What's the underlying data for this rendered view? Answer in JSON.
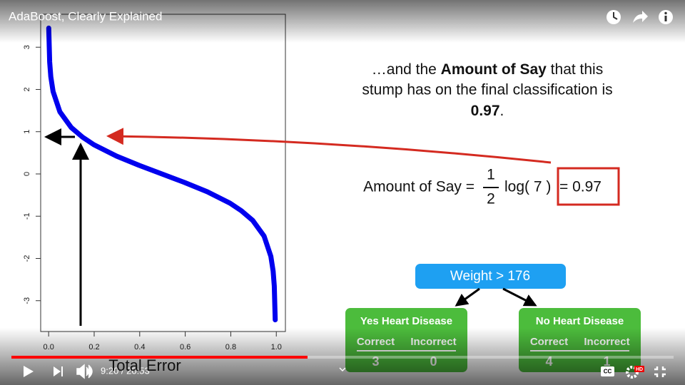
{
  "player": {
    "title": "AdaBoost, Clearly Explained",
    "time": "9:20 / 20:53",
    "cc": "CC",
    "hd": "HD"
  },
  "plot": {
    "xlabel": "Total Error",
    "xlim": [
      -0.035,
      1.04
    ],
    "ylim": [
      -3.73,
      3.78
    ],
    "xticks": [
      {
        "value": 0,
        "label": "0.0"
      },
      0.2,
      0.4,
      0.6,
      0.8,
      {
        "value": 1,
        "label": "1.0"
      }
    ],
    "yticks": [
      -3,
      -2,
      -1,
      0,
      1,
      2,
      3
    ]
  },
  "slide": {
    "line1_pre": "…and the ",
    "line1_bold": "Amount of Say",
    "line1_post": " that this",
    "line2": "stump has on the final classification is",
    "line3_bold": "0.97",
    "line3_post": ".",
    "equation": {
      "lhs": "Amount of Say =",
      "numerator": "1",
      "denominator": "2",
      "log": "log( 7 )",
      "result": "= 0.97"
    }
  },
  "tree": {
    "root": "Weight > 176",
    "leaves": [
      {
        "label": "Yes Heart Disease",
        "columns": [
          "Correct",
          "Incorrect"
        ],
        "counts": [
          "3",
          "0"
        ]
      },
      {
        "label": "No Heart Disease",
        "columns": [
          "Correct",
          "Incorrect"
        ],
        "counts": [
          "4",
          "1"
        ]
      }
    ]
  }
}
